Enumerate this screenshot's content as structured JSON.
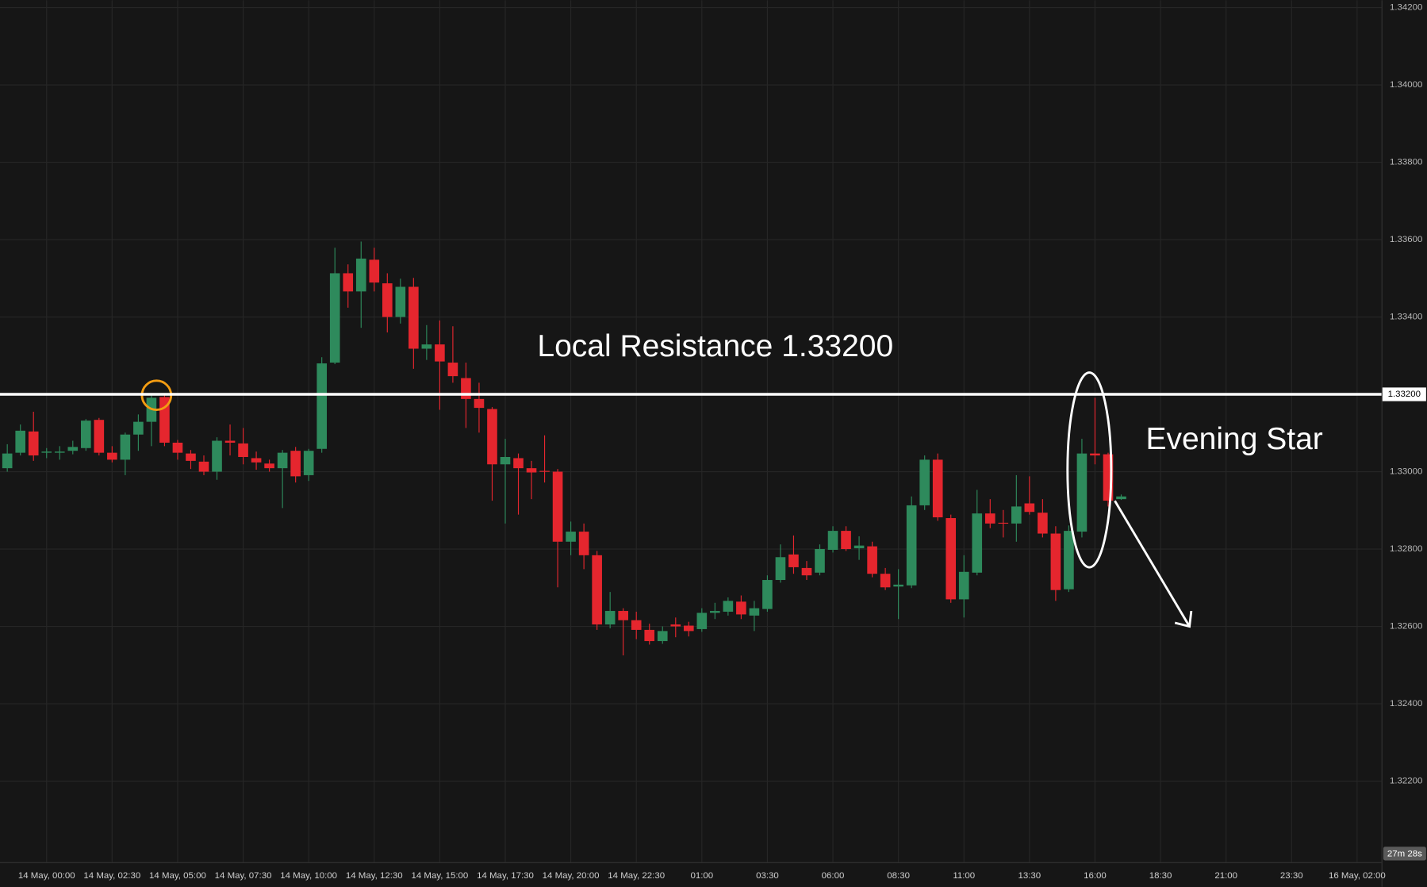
{
  "chart_data": {
    "type": "candlestick",
    "categories": [
      null,
      null,
      null,
      "14 May, 00:00",
      null,
      null,
      null,
      null,
      "14 May, 02:30",
      null,
      null,
      null,
      null,
      "14 May, 05:00",
      null,
      null,
      null,
      null,
      "14 May, 07:30",
      null,
      null,
      null,
      null,
      "14 May, 10:00",
      null,
      null,
      null,
      null,
      "14 May, 12:30",
      null,
      null,
      null,
      null,
      "14 May, 15:00",
      null,
      null,
      null,
      null,
      "14 May, 17:30",
      null,
      null,
      null,
      null,
      "14 May, 20:00",
      null,
      null,
      null,
      null,
      "14 May, 22:30",
      null,
      null,
      null,
      null,
      "01:00",
      null,
      null,
      null,
      null,
      "03:30",
      null,
      null,
      null,
      null,
      "06:00",
      null,
      null,
      null,
      null,
      "08:30",
      null,
      null,
      null,
      null,
      "11:00",
      null,
      null,
      null,
      null,
      "13:30",
      null,
      null,
      null,
      null,
      "16:00",
      null,
      null,
      null,
      null,
      "18:30",
      null,
      null,
      null,
      null,
      "21:00",
      null,
      null,
      null,
      null,
      "23:30",
      null,
      null,
      null,
      null,
      "16 May, 02:00",
      null
    ],
    "open": [
      1.33009,
      1.33049,
      1.33104,
      1.33049,
      1.33049,
      1.33054,
      1.33061,
      1.33134,
      1.33049,
      1.33031,
      1.33096,
      1.33129,
      1.33193,
      1.33075,
      1.33047,
      1.33026,
      1.33,
      1.3308,
      1.33073,
      1.33035,
      1.33021,
      1.33009,
      1.33054,
      1.32991,
      1.33059,
      1.33282,
      1.33513,
      1.33466,
      1.33548,
      1.33487,
      1.334,
      1.33478,
      1.33318,
      1.33329,
      1.33282,
      1.33242,
      1.33188,
      1.33162,
      1.33019,
      1.33035,
      1.33009,
      1.33002,
      1.33,
      1.32819,
      1.32845,
      1.32784,
      1.32605,
      1.3264,
      1.32616,
      1.32591,
      1.32562,
      1.32605,
      1.32602,
      1.32593,
      1.32635,
      1.32638,
      1.32664,
      1.32628,
      1.32645,
      1.3272,
      1.32786,
      1.32751,
      1.32739,
      1.32798,
      1.32847,
      1.32802,
      1.32807,
      1.32736,
      1.32703,
      1.32706,
      1.32913,
      1.33031,
      1.3288,
      1.3267,
      1.32739,
      1.32892,
      1.32868,
      1.32866,
      1.32918,
      1.32894,
      1.3284,
      1.32696,
      1.32845,
      1.33047,
      1.33045,
      1.32929,
      null,
      null,
      null,
      null,
      null,
      null,
      null,
      null,
      null,
      null,
      null,
      null,
      null,
      null,
      null,
      null,
      null,
      null,
      null
    ],
    "high": [
      1.33071,
      1.33122,
      1.33155,
      1.33061,
      1.33066,
      1.3308,
      1.33136,
      1.33139,
      1.33066,
      1.33101,
      1.33148,
      1.33198,
      1.33198,
      1.33082,
      1.33056,
      1.33042,
      1.33089,
      1.33122,
      1.33113,
      1.33052,
      1.33031,
      1.33056,
      1.33064,
      1.33059,
      1.33296,
      1.33579,
      1.33536,
      1.33595,
      1.33579,
      1.33513,
      1.33499,
      1.33501,
      1.33379,
      1.33391,
      1.33376,
      1.33282,
      1.3323,
      1.33167,
      1.33085,
      1.33047,
      1.33028,
      1.33094,
      1.33007,
      1.32871,
      1.32866,
      1.32795,
      1.32689,
      1.32647,
      1.32638,
      1.32607,
      1.326,
      1.32623,
      1.32612,
      1.32647,
      1.32661,
      1.32675,
      1.3268,
      1.32666,
      1.32732,
      1.32812,
      1.32835,
      1.32769,
      1.32812,
      1.32859,
      1.32859,
      1.32833,
      1.32819,
      1.32751,
      1.32748,
      1.32936,
      1.33042,
      1.33047,
      1.32889,
      1.32784,
      1.32953,
      1.32929,
      1.32901,
      1.32991,
      1.32988,
      1.32929,
      1.32859,
      1.32861,
      1.33085,
      1.33191,
      1.33049,
      1.32941,
      null,
      null,
      null,
      null,
      null,
      null,
      null,
      null,
      null,
      null,
      null,
      null,
      null,
      null,
      null,
      null,
      null,
      null,
      null
    ],
    "low": [
      1.33,
      1.33042,
      1.33028,
      1.33035,
      1.33031,
      1.33045,
      1.33054,
      1.33042,
      1.33024,
      1.32991,
      1.33054,
      1.33066,
      1.33066,
      1.33031,
      1.33007,
      1.32991,
      1.32979,
      1.33042,
      1.33019,
      1.33005,
      1.33,
      1.32906,
      1.32972,
      1.32976,
      1.33049,
      1.33278,
      1.33424,
      1.33372,
      1.33466,
      1.3336,
      1.33383,
      1.33266,
      1.33289,
      1.3316,
      1.3323,
      1.33113,
      1.33101,
      1.32925,
      1.32866,
      1.32889,
      1.32929,
      1.32972,
      1.32701,
      1.32784,
      1.32748,
      1.32591,
      1.32595,
      1.32525,
      1.32567,
      1.32553,
      1.32555,
      1.32572,
      1.32574,
      1.32586,
      1.32619,
      1.32628,
      1.32619,
      1.32588,
      1.32638,
      1.32713,
      1.32736,
      1.3272,
      1.32732,
      1.32791,
      1.32795,
      1.32772,
      1.32727,
      1.32694,
      1.32619,
      1.32699,
      1.32901,
      1.32873,
      1.32661,
      1.32623,
      1.32732,
      1.32854,
      1.3283,
      1.32819,
      1.32889,
      1.3283,
      1.32666,
      1.32689,
      1.3283,
      1.33019,
      1.3291,
      1.32927,
      null,
      null,
      null,
      null,
      null,
      null,
      null,
      null,
      null,
      null,
      null,
      null,
      null,
      null,
      null,
      null,
      null,
      null,
      null
    ],
    "close": [
      1.33047,
      1.33106,
      1.33042,
      1.33052,
      1.33052,
      1.33064,
      1.33132,
      1.33049,
      1.33031,
      1.33096,
      1.33129,
      1.33191,
      1.33075,
      1.33049,
      1.33028,
      1.33,
      1.3308,
      1.33075,
      1.33038,
      1.33024,
      1.33009,
      1.33049,
      1.32988,
      1.33054,
      1.3328,
      1.33513,
      1.33466,
      1.33551,
      1.33489,
      1.334,
      1.33478,
      1.33318,
      1.33329,
      1.33285,
      1.33247,
      1.33188,
      1.33165,
      1.33019,
      1.33038,
      1.33009,
      1.32998,
      1.33,
      1.32819,
      1.32845,
      1.32784,
      1.32605,
      1.3264,
      1.32616,
      1.32591,
      1.32562,
      1.32588,
      1.326,
      1.32588,
      1.32635,
      1.3264,
      1.32666,
      1.32631,
      1.32647,
      1.3272,
      1.32779,
      1.32753,
      1.32732,
      1.328,
      1.32847,
      1.328,
      1.32809,
      1.32736,
      1.32701,
      1.32708,
      1.32913,
      1.33031,
      1.32882,
      1.3267,
      1.32741,
      1.32892,
      1.32866,
      1.32866,
      1.3291,
      1.32896,
      1.3284,
      1.32694,
      1.32847,
      1.33047,
      1.33042,
      1.32925,
      1.32936,
      null,
      null,
      null,
      null,
      null,
      null,
      null,
      null,
      null,
      null,
      null,
      null,
      null,
      null,
      null,
      null,
      null,
      null,
      null
    ],
    "up_color": "#2e8a5c",
    "down_color": "#e5262e",
    "ylim": [
      1.31995,
      1.34219
    ],
    "yticks": [
      {
        "value": 1.322,
        "label": "1.32200"
      },
      {
        "value": 1.324,
        "label": "1.32400"
      },
      {
        "value": 1.326,
        "label": "1.32600"
      },
      {
        "value": 1.328,
        "label": "1.32800"
      },
      {
        "value": 1.33,
        "label": "1.33000"
      },
      {
        "value": 1.332,
        "label": "1.33200"
      },
      {
        "value": 1.334,
        "label": "1.33400"
      },
      {
        "value": 1.336,
        "label": "1.33600"
      },
      {
        "value": 1.338,
        "label": "1.33800"
      },
      {
        "value": 1.34,
        "label": "1.34000"
      },
      {
        "value": 1.342,
        "label": "1.34200"
      }
    ],
    "grid": true,
    "resistance": {
      "value": 1.332,
      "label": "1.33200"
    },
    "resistance_text": "Local Resistance 1.33200",
    "pattern_text": "Evening Star",
    "countdown": "27m 28s"
  }
}
